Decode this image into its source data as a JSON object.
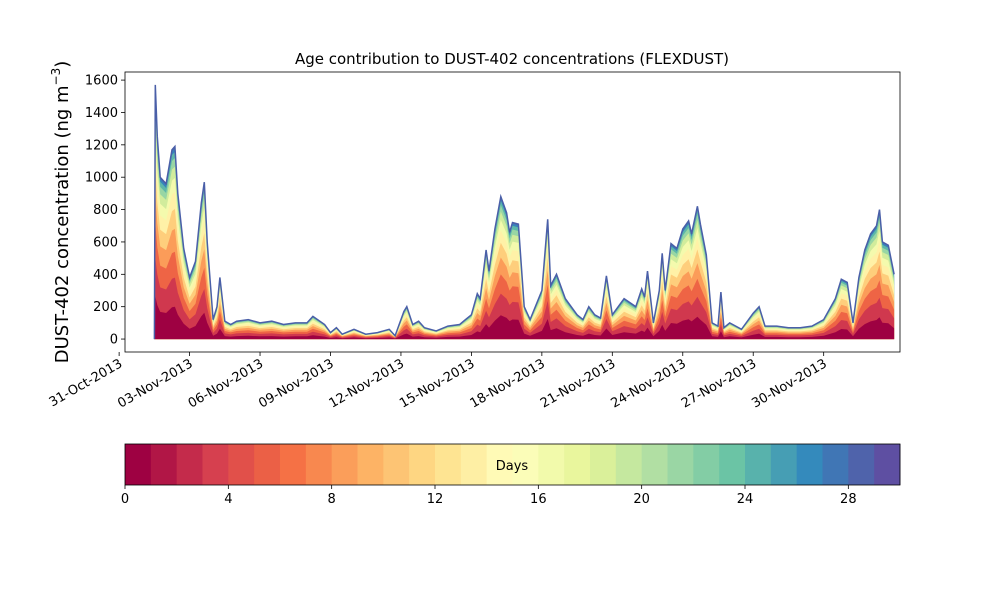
{
  "chart_data": {
    "type": "area",
    "title": "Age contribution to DUST-402 concentrations (FLEXDUST)",
    "ylabel_main": "DUST-402 concentration (ng m",
    "ylabel_exp": "−3",
    "ylabel_close": ")",
    "xlabel": "",
    "ylim": [
      -80,
      1650
    ],
    "xlim": [
      "2013-10-31T06:00",
      "2013-12-03T06:00"
    ],
    "yticks": [
      0,
      200,
      400,
      600,
      800,
      1000,
      1200,
      1400,
      1600
    ],
    "xticks": [
      {
        "date": "2013-10-31",
        "label": "31-Oct-2013"
      },
      {
        "date": "2013-11-03",
        "label": "03-Nov-2013"
      },
      {
        "date": "2013-11-06",
        "label": "06-Nov-2013"
      },
      {
        "date": "2013-11-09",
        "label": "09-Nov-2013"
      },
      {
        "date": "2013-11-12",
        "label": "12-Nov-2013"
      },
      {
        "date": "2013-11-15",
        "label": "15-Nov-2013"
      },
      {
        "date": "2013-11-18",
        "label": "18-Nov-2013"
      },
      {
        "date": "2013-11-21",
        "label": "21-Nov-2013"
      },
      {
        "date": "2013-11-24",
        "label": "24-Nov-2013"
      },
      {
        "date": "2013-11-27",
        "label": "27-Nov-2013"
      },
      {
        "date": "2013-11-30",
        "label": "30-Nov-2013"
      }
    ],
    "total_series": [
      [
        "2013-11-01T12:00",
        0
      ],
      [
        "2013-11-01T13:00",
        1570
      ],
      [
        "2013-11-01T15:00",
        1250
      ],
      [
        "2013-11-01T18:00",
        1000
      ],
      [
        "2013-11-02T00:00",
        960
      ],
      [
        "2013-11-02T06:00",
        1170
      ],
      [
        "2013-11-02T09:00",
        1190
      ],
      [
        "2013-11-02T12:00",
        900
      ],
      [
        "2013-11-02T18:00",
        560
      ],
      [
        "2013-11-03T00:00",
        380
      ],
      [
        "2013-11-03T06:00",
        480
      ],
      [
        "2013-11-03T12:00",
        840
      ],
      [
        "2013-11-03T15:00",
        970
      ],
      [
        "2013-11-03T18:00",
        600
      ],
      [
        "2013-11-04T00:00",
        120
      ],
      [
        "2013-11-04T04:00",
        200
      ],
      [
        "2013-11-04T07:00",
        380
      ],
      [
        "2013-11-04T12:00",
        110
      ],
      [
        "2013-11-04T18:00",
        90
      ],
      [
        "2013-11-05T00:00",
        110
      ],
      [
        "2013-11-05T12:00",
        120
      ],
      [
        "2013-11-06T00:00",
        100
      ],
      [
        "2013-11-06T12:00",
        110
      ],
      [
        "2013-11-07T00:00",
        90
      ],
      [
        "2013-11-07T12:00",
        100
      ],
      [
        "2013-11-08T00:00",
        100
      ],
      [
        "2013-11-08T06:00",
        140
      ],
      [
        "2013-11-08T18:00",
        90
      ],
      [
        "2013-11-09T00:00",
        40
      ],
      [
        "2013-11-09T06:00",
        70
      ],
      [
        "2013-11-09T12:00",
        30
      ],
      [
        "2013-11-10T00:00",
        60
      ],
      [
        "2013-11-10T12:00",
        30
      ],
      [
        "2013-11-11T00:00",
        40
      ],
      [
        "2013-11-11T12:00",
        60
      ],
      [
        "2013-11-11T18:00",
        20
      ],
      [
        "2013-11-12T03:00",
        170
      ],
      [
        "2013-11-12T06:00",
        200
      ],
      [
        "2013-11-12T12:00",
        90
      ],
      [
        "2013-11-12T18:00",
        110
      ],
      [
        "2013-11-13T00:00",
        70
      ],
      [
        "2013-11-13T12:00",
        50
      ],
      [
        "2013-11-14T00:00",
        80
      ],
      [
        "2013-11-14T12:00",
        90
      ],
      [
        "2013-11-14T18:00",
        120
      ],
      [
        "2013-11-15T00:00",
        150
      ],
      [
        "2013-11-15T06:00",
        280
      ],
      [
        "2013-11-15T09:00",
        250
      ],
      [
        "2013-11-15T15:00",
        550
      ],
      [
        "2013-11-15T18:00",
        420
      ],
      [
        "2013-11-16T00:00",
        680
      ],
      [
        "2013-11-16T06:00",
        880
      ],
      [
        "2013-11-16T12:00",
        780
      ],
      [
        "2013-11-16T15:00",
        660
      ],
      [
        "2013-11-16T18:00",
        720
      ],
      [
        "2013-11-17T00:00",
        710
      ],
      [
        "2013-11-17T06:00",
        200
      ],
      [
        "2013-11-17T12:00",
        120
      ],
      [
        "2013-11-18T00:00",
        300
      ],
      [
        "2013-11-18T06:00",
        740
      ],
      [
        "2013-11-18T09:00",
        330
      ],
      [
        "2013-11-18T15:00",
        400
      ],
      [
        "2013-11-19T00:00",
        250
      ],
      [
        "2013-11-19T12:00",
        150
      ],
      [
        "2013-11-19T18:00",
        120
      ],
      [
        "2013-11-20T00:00",
        200
      ],
      [
        "2013-11-20T06:00",
        150
      ],
      [
        "2013-11-20T12:00",
        130
      ],
      [
        "2013-11-20T18:00",
        390
      ],
      [
        "2013-11-21T00:00",
        150
      ],
      [
        "2013-11-21T06:00",
        200
      ],
      [
        "2013-11-21T12:00",
        250
      ],
      [
        "2013-11-22T00:00",
        200
      ],
      [
        "2013-11-22T06:00",
        310
      ],
      [
        "2013-11-22T09:00",
        260
      ],
      [
        "2013-11-22T12:00",
        420
      ],
      [
        "2013-11-22T18:00",
        100
      ],
      [
        "2013-11-23T00:00",
        300
      ],
      [
        "2013-11-23T03:00",
        530
      ],
      [
        "2013-11-23T06:00",
        300
      ],
      [
        "2013-11-23T12:00",
        590
      ],
      [
        "2013-11-23T18:00",
        560
      ],
      [
        "2013-11-24T00:00",
        680
      ],
      [
        "2013-11-24T06:00",
        730
      ],
      [
        "2013-11-24T09:00",
        650
      ],
      [
        "2013-11-24T15:00",
        820
      ],
      [
        "2013-11-24T18:00",
        710
      ],
      [
        "2013-11-25T00:00",
        520
      ],
      [
        "2013-11-25T06:00",
        100
      ],
      [
        "2013-11-25T12:00",
        80
      ],
      [
        "2013-11-25T15:00",
        290
      ],
      [
        "2013-11-25T18:00",
        70
      ],
      [
        "2013-11-26T00:00",
        100
      ],
      [
        "2013-11-26T12:00",
        60
      ],
      [
        "2013-11-27T00:00",
        160
      ],
      [
        "2013-11-27T06:00",
        200
      ],
      [
        "2013-11-27T12:00",
        80
      ],
      [
        "2013-11-28T00:00",
        80
      ],
      [
        "2013-11-28T12:00",
        70
      ],
      [
        "2013-11-29T00:00",
        70
      ],
      [
        "2013-11-29T12:00",
        80
      ],
      [
        "2013-11-30T00:00",
        120
      ],
      [
        "2013-11-30T12:00",
        250
      ],
      [
        "2013-11-30T18:00",
        370
      ],
      [
        "2013-12-01T00:00",
        350
      ],
      [
        "2013-12-01T06:00",
        100
      ],
      [
        "2013-12-01T12:00",
        380
      ],
      [
        "2013-12-01T18:00",
        550
      ],
      [
        "2013-12-02T00:00",
        650
      ],
      [
        "2013-12-02T06:00",
        700
      ],
      [
        "2013-12-02T09:00",
        800
      ],
      [
        "2013-12-02T12:00",
        600
      ],
      [
        "2013-12-02T18:00",
        580
      ],
      [
        "2013-12-03T00:00",
        400
      ]
    ],
    "colorbar": {
      "label": "Days",
      "range": [
        0,
        30
      ],
      "ticks": [
        0,
        4,
        8,
        12,
        16,
        20,
        24,
        28
      ],
      "bands": 30,
      "colormap": "Spectral",
      "colors": [
        "#9e0142",
        "#d53e4f",
        "#f46d43",
        "#fdae61",
        "#fee08b",
        "#ffffbf",
        "#e6f598",
        "#abdda4",
        "#66c2a5",
        "#3288bd",
        "#5e4fa2"
      ]
    }
  }
}
